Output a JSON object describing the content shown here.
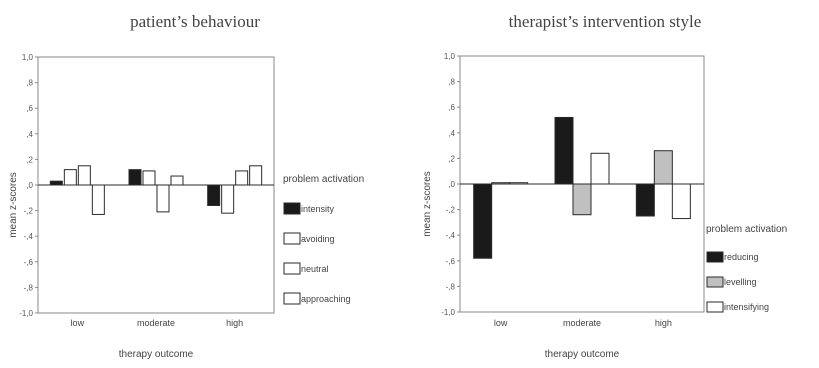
{
  "chart_data": [
    {
      "type": "bar",
      "title": "patient’s behaviour",
      "xlabel": "therapy outcome",
      "ylabel": "mean z-scores",
      "ylim": [
        -1.0,
        1.0
      ],
      "yticks": [
        "1,0",
        ",8",
        ",6",
        ",4",
        ",2",
        ",0",
        "-,2",
        "-,4",
        "-,6",
        "-,8",
        "-1,0"
      ],
      "ytick_values": [
        1.0,
        0.8,
        0.6,
        0.4,
        0.2,
        0.0,
        -0.2,
        -0.4,
        -0.6,
        -0.8,
        -1.0
      ],
      "categories": [
        "low",
        "moderate",
        "high"
      ],
      "legend_title": "problem activation",
      "legend_placement": "right",
      "grid": false,
      "series": [
        {
          "name": "intensity",
          "color": "#1a1a1a",
          "values": [
            0.03,
            0.12,
            -0.16
          ]
        },
        {
          "name": "avoiding",
          "color": "#ffffff",
          "values": [
            0.12,
            0.11,
            -0.22
          ]
        },
        {
          "name": "neutral",
          "color": "#ffffff",
          "values": [
            0.15,
            -0.21,
            0.11
          ]
        },
        {
          "name": "approaching",
          "color": "#ffffff",
          "values": [
            -0.23,
            0.07,
            0.15
          ]
        }
      ]
    },
    {
      "type": "bar",
      "title": "therapist’s intervention style",
      "xlabel": "therapy outcome",
      "ylabel": "mean z-scores",
      "ylim": [
        -1.0,
        1.0
      ],
      "yticks": [
        "1,0",
        ",8",
        ",6",
        ",4",
        ",2",
        ",0",
        "-,2",
        "-,4",
        "-,6",
        "-,8",
        "-1,0"
      ],
      "ytick_values": [
        1.0,
        0.8,
        0.6,
        0.4,
        0.2,
        0.0,
        -0.2,
        -0.4,
        -0.6,
        -0.8,
        -1.0
      ],
      "categories": [
        "low",
        "moderate",
        "high"
      ],
      "legend_title": "problem activation",
      "legend_placement": "right",
      "grid": false,
      "series": [
        {
          "name": "reducing",
          "color": "#1a1a1a",
          "values": [
            -0.58,
            0.52,
            -0.25
          ]
        },
        {
          "name": "levelling",
          "color": "#c0c0c0",
          "values": [
            0.01,
            -0.24,
            0.26
          ]
        },
        {
          "name": "intensifying",
          "color": "#ffffff",
          "values": [
            0.01,
            0.24,
            -0.27
          ]
        }
      ]
    }
  ]
}
